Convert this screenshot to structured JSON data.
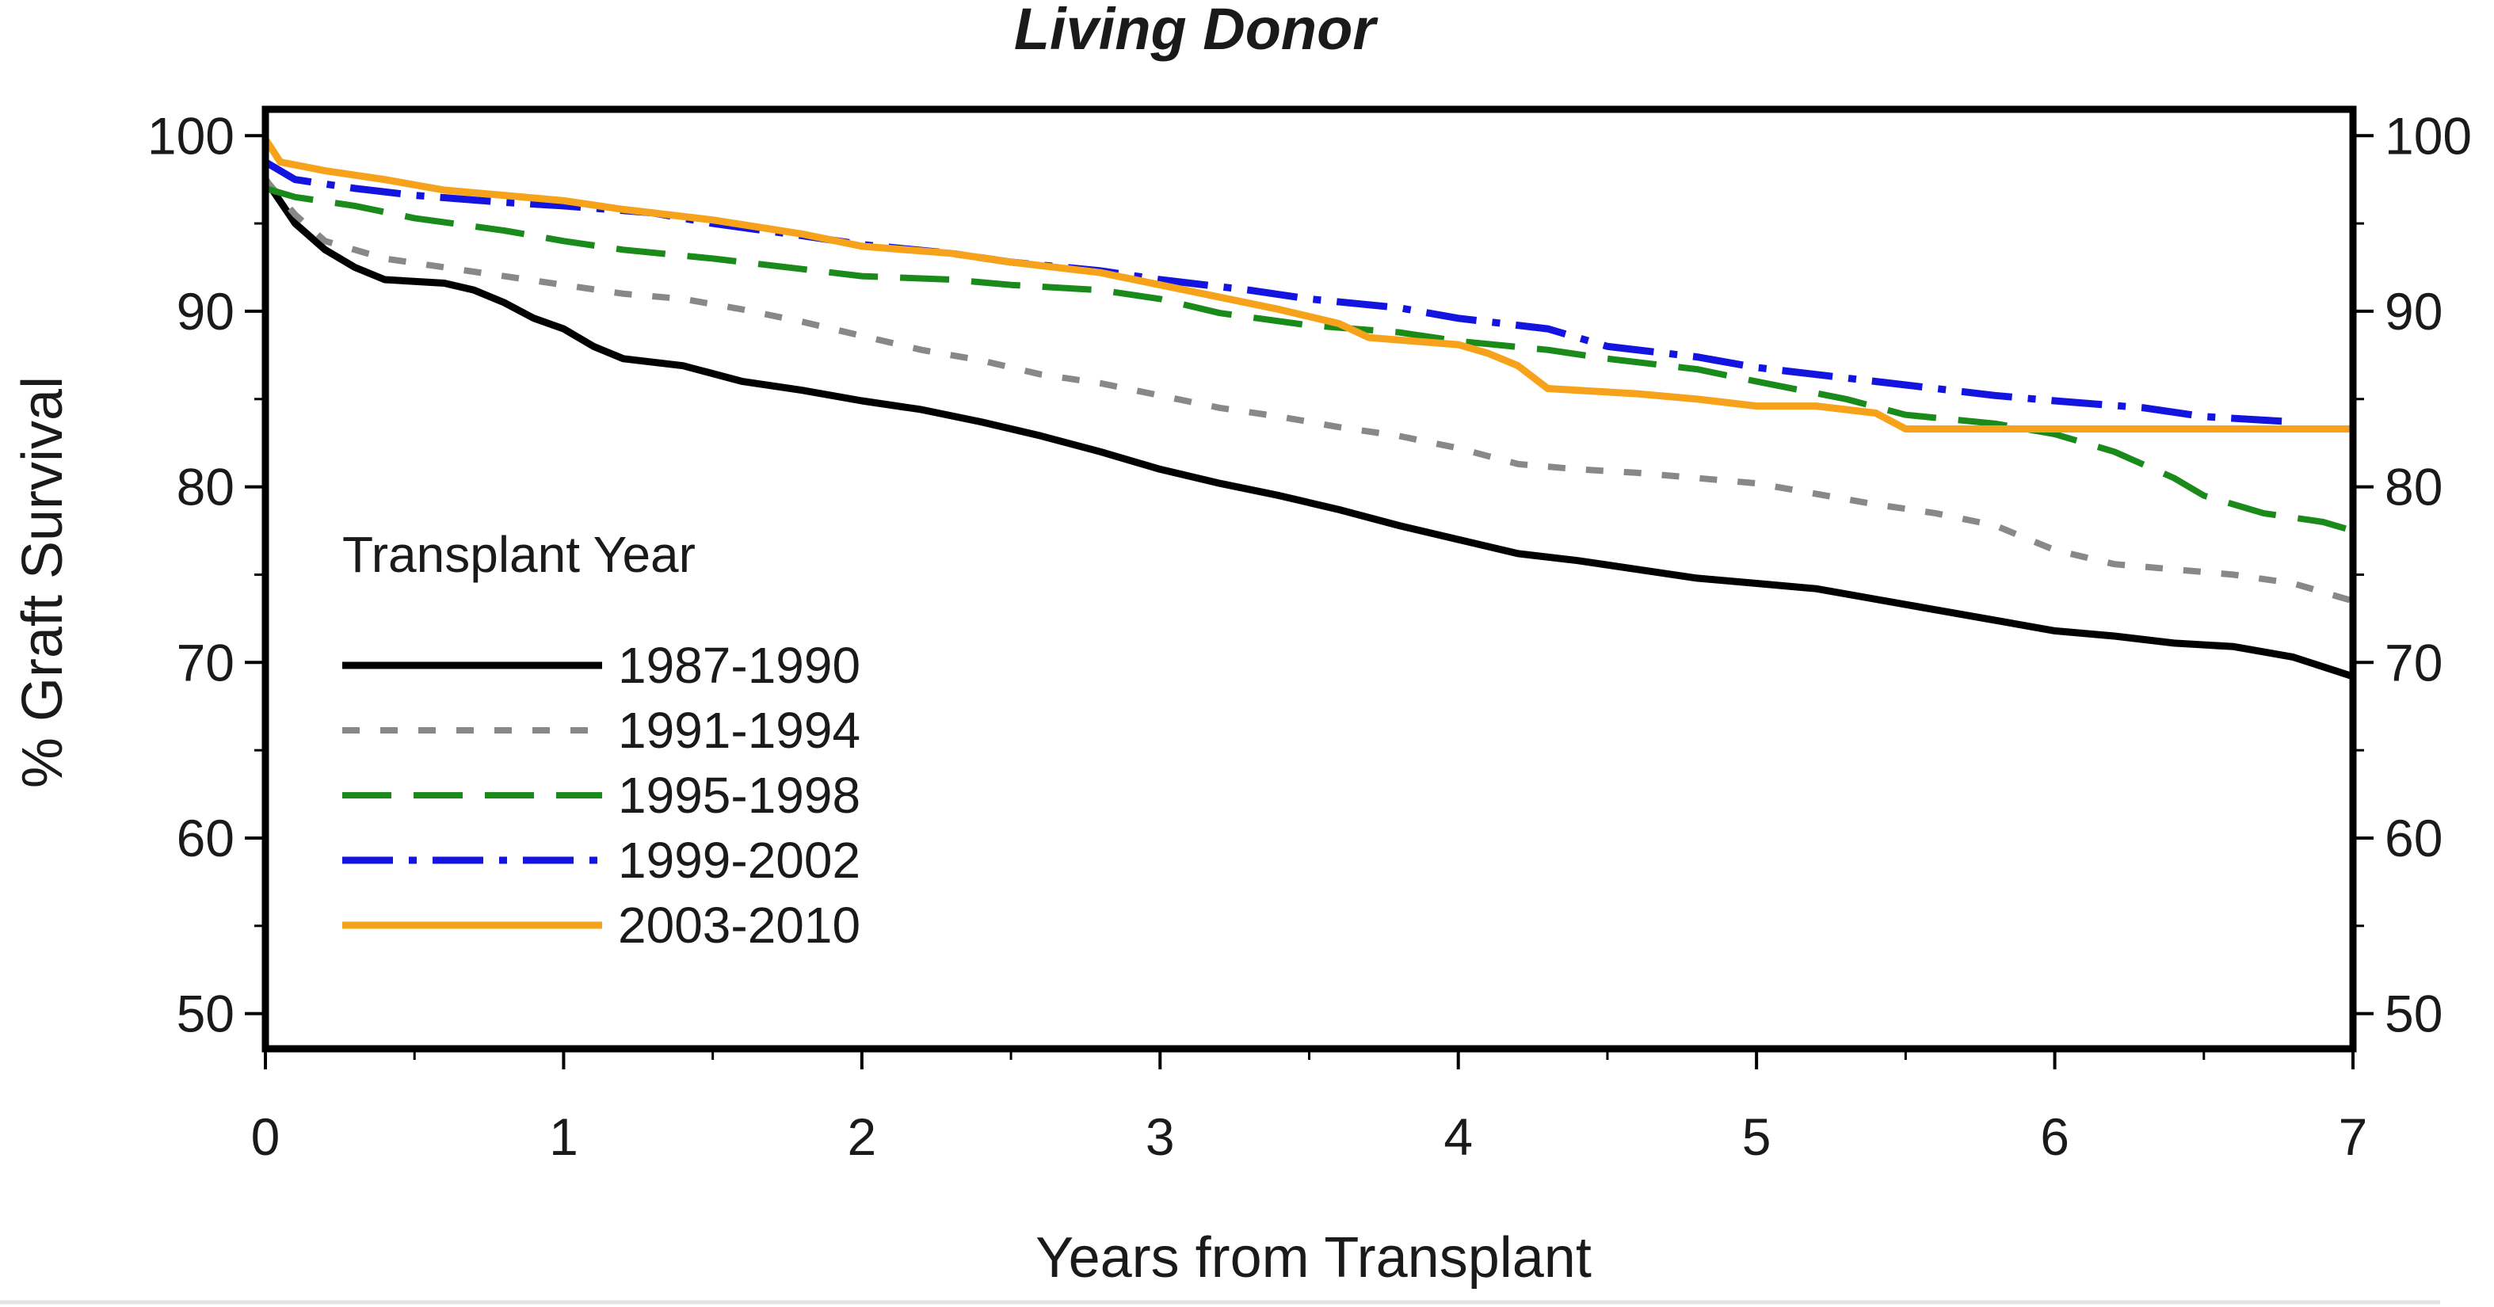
{
  "chart_data": {
    "type": "line",
    "title": "Living Donor",
    "xlabel": "Years from Transplant",
    "ylabel": "% Graft Survival",
    "xlim": [
      0,
      7
    ],
    "ylim": [
      48,
      101.5
    ],
    "xticks": [
      0,
      1,
      2,
      3,
      4,
      5,
      6,
      7
    ],
    "yticks": [
      50,
      60,
      70,
      80,
      90,
      100
    ],
    "right_axis_ticks": true,
    "grid": false,
    "legend": {
      "title": "Transplant Year",
      "placement": "lower-left inside"
    },
    "series": [
      {
        "name": "1987-1990",
        "color": "#000000",
        "dash": "solid",
        "x": [
          0,
          0.1,
          0.2,
          0.3,
          0.4,
          0.6,
          0.7,
          0.8,
          0.9,
          1.0,
          1.1,
          1.2,
          1.4,
          1.6,
          1.8,
          2.0,
          2.2,
          2.4,
          2.6,
          2.8,
          3.0,
          3.2,
          3.4,
          3.6,
          3.8,
          4.0,
          4.2,
          4.4,
          4.6,
          4.8,
          5.0,
          5.2,
          5.4,
          5.6,
          5.8,
          6.0,
          6.2,
          6.4,
          6.6,
          6.8,
          7.0
        ],
        "y": [
          97.5,
          95.0,
          93.5,
          92.5,
          91.8,
          91.6,
          91.2,
          90.5,
          89.6,
          89.0,
          88.0,
          87.3,
          86.9,
          86.0,
          85.5,
          84.9,
          84.4,
          83.7,
          82.9,
          82.0,
          81.0,
          80.2,
          79.5,
          78.7,
          77.8,
          77.0,
          76.2,
          75.8,
          75.3,
          74.8,
          74.5,
          74.2,
          73.6,
          73.0,
          72.4,
          71.8,
          71.5,
          71.1,
          70.9,
          70.3,
          69.2
        ]
      },
      {
        "name": "1991-1994",
        "color": "#888888",
        "dash": "short-dash",
        "x": [
          0,
          0.1,
          0.2,
          0.4,
          0.6,
          0.8,
          1.0,
          1.2,
          1.4,
          1.6,
          1.8,
          2.0,
          2.2,
          2.4,
          2.6,
          2.8,
          3.0,
          3.2,
          3.4,
          3.6,
          3.8,
          4.0,
          4.2,
          4.4,
          4.6,
          4.8,
          5.0,
          5.2,
          5.4,
          5.6,
          5.8,
          6.0,
          6.2,
          6.4,
          6.6,
          6.8,
          7.0
        ],
        "y": [
          97.5,
          95.5,
          94.0,
          93.0,
          92.5,
          92.0,
          91.5,
          91.0,
          90.7,
          90.1,
          89.4,
          88.6,
          87.8,
          87.2,
          86.4,
          85.9,
          85.2,
          84.5,
          84.0,
          83.4,
          82.9,
          82.2,
          81.3,
          81.0,
          80.8,
          80.5,
          80.2,
          79.6,
          79.0,
          78.5,
          77.8,
          76.4,
          75.6,
          75.3,
          75.0,
          74.5,
          73.5
        ]
      },
      {
        "name": "1995-1998",
        "color": "#1a8a1a",
        "dash": "long-dash",
        "x": [
          0,
          0.1,
          0.3,
          0.5,
          0.8,
          1.0,
          1.2,
          1.5,
          1.8,
          2.0,
          2.3,
          2.5,
          2.8,
          3.0,
          3.2,
          3.5,
          3.8,
          4.0,
          4.3,
          4.5,
          4.8,
          5.0,
          5.3,
          5.5,
          5.8,
          6.0,
          6.2,
          6.4,
          6.5,
          6.7,
          6.9,
          7.0
        ],
        "y": [
          97.0,
          96.5,
          96.0,
          95.3,
          94.6,
          94.0,
          93.5,
          93.0,
          92.4,
          92.0,
          91.8,
          91.5,
          91.2,
          90.7,
          89.9,
          89.2,
          88.8,
          88.3,
          87.8,
          87.3,
          86.7,
          86.0,
          85.0,
          84.1,
          83.6,
          83.0,
          82.0,
          80.5,
          79.5,
          78.5,
          78.0,
          77.5
        ]
      },
      {
        "name": "1999-2002",
        "color": "#1414e0",
        "dash": "long-dash-dot",
        "x": [
          0,
          0.1,
          0.3,
          0.5,
          0.8,
          1.0,
          1.3,
          1.5,
          1.8,
          2.0,
          2.3,
          2.5,
          2.8,
          3.0,
          3.3,
          3.5,
          3.8,
          4.0,
          4.3,
          4.5,
          4.8,
          5.0,
          5.3,
          5.5,
          5.8,
          6.0,
          6.3,
          6.5,
          6.8
        ],
        "y": [
          98.5,
          97.5,
          97.0,
          96.6,
          96.2,
          96.0,
          95.6,
          95.0,
          94.3,
          93.8,
          93.3,
          92.8,
          92.3,
          91.8,
          91.2,
          90.7,
          90.2,
          89.6,
          89.0,
          88.0,
          87.4,
          86.8,
          86.2,
          85.8,
          85.2,
          84.9,
          84.5,
          84.0,
          83.7
        ]
      },
      {
        "name": "2003-2010",
        "color": "#f7a21b",
        "dash": "solid",
        "x": [
          0,
          0.05,
          0.2,
          0.4,
          0.6,
          0.8,
          1.0,
          1.2,
          1.5,
          1.8,
          2.0,
          2.3,
          2.5,
          2.8,
          3.0,
          3.2,
          3.4,
          3.6,
          3.7,
          4.0,
          4.1,
          4.2,
          4.3,
          4.6,
          4.8,
          5.0,
          5.2,
          5.4,
          5.5,
          6.0,
          6.5,
          7.0
        ],
        "y": [
          99.8,
          98.5,
          98.0,
          97.5,
          96.9,
          96.6,
          96.3,
          95.8,
          95.2,
          94.4,
          93.7,
          93.3,
          92.8,
          92.2,
          91.5,
          90.8,
          90.1,
          89.3,
          88.5,
          88.1,
          87.6,
          86.9,
          85.6,
          85.3,
          85.0,
          84.6,
          84.6,
          84.2,
          83.3,
          83.3,
          83.3,
          83.3
        ]
      }
    ]
  }
}
